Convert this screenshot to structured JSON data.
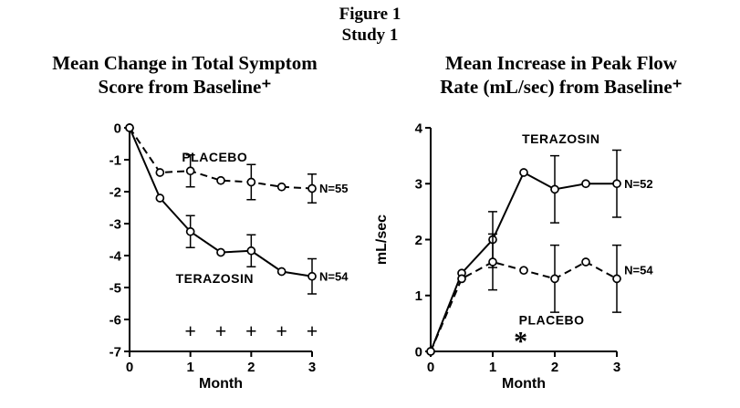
{
  "figure": {
    "title": "Figure 1",
    "subtitle": "Study 1"
  },
  "chart_data": [
    {
      "type": "line",
      "name": "symptom-score",
      "title_lines": [
        "Mean Change in Total Symptom",
        "Score from Baseline⁺"
      ],
      "xlabel": "Month",
      "ylabel": "",
      "xlim": [
        0,
        3
      ],
      "ylim": [
        -7,
        0
      ],
      "xticks": [
        0,
        1,
        2,
        3
      ],
      "yticks": [
        0,
        -1,
        -2,
        -3,
        -4,
        -5,
        -6,
        -7
      ],
      "x": [
        0,
        0.5,
        1,
        1.5,
        2,
        2.5,
        3
      ],
      "series": [
        {
          "name": "PLACEBO",
          "n_label": "N=55",
          "line_style": "dashed",
          "values": [
            0,
            -1.4,
            -1.35,
            -1.65,
            -1.7,
            -1.85,
            -1.9
          ],
          "errors": [
            null,
            null,
            0.5,
            null,
            0.55,
            null,
            0.45
          ],
          "label_pos": {
            "x": 1.4,
            "y": -1.05
          },
          "n_label_pos": {
            "x": 3.12,
            "y": -1.9
          }
        },
        {
          "name": "TERAZOSIN",
          "n_label": "N=54",
          "line_style": "solid",
          "values": [
            0,
            -2.2,
            -3.25,
            -3.9,
            -3.85,
            -4.5,
            -4.65
          ],
          "errors": [
            null,
            null,
            0.5,
            null,
            0.5,
            null,
            0.55
          ],
          "label_pos": {
            "x": 1.4,
            "y": -4.85
          },
          "n_label_pos": {
            "x": 3.12,
            "y": -4.65
          }
        }
      ],
      "annotations": [
        {
          "text": "+",
          "x": 1.0,
          "y": -6.35
        },
        {
          "text": "+",
          "x": 1.5,
          "y": -6.35
        },
        {
          "text": "+",
          "x": 2.0,
          "y": -6.35
        },
        {
          "text": "+",
          "x": 2.5,
          "y": -6.35
        },
        {
          "text": "+",
          "x": 3.0,
          "y": -6.35
        }
      ]
    },
    {
      "type": "line",
      "name": "peak-flow",
      "title_lines": [
        "Mean Increase in Peak Flow",
        "Rate (mL/sec) from Baseline⁺"
      ],
      "xlabel": "Month",
      "ylabel": "mL/sec",
      "xlim": [
        0,
        3
      ],
      "ylim": [
        0,
        4
      ],
      "xticks": [
        0,
        1,
        2,
        3
      ],
      "yticks": [
        0,
        1,
        2,
        3,
        4
      ],
      "x": [
        0,
        0.5,
        1,
        1.5,
        2,
        2.5,
        3
      ],
      "series": [
        {
          "name": "TERAZOSIN",
          "n_label": "N=52",
          "line_style": "solid",
          "values": [
            0,
            1.4,
            2.0,
            3.2,
            2.9,
            3.0,
            3.0
          ],
          "errors": [
            null,
            null,
            0.5,
            null,
            0.6,
            null,
            0.6
          ],
          "label_pos": {
            "x": 2.1,
            "y": 3.72
          },
          "n_label_pos": {
            "x": 3.12,
            "y": 3.0
          }
        },
        {
          "name": "PLACEBO",
          "n_label": "N=54",
          "line_style": "dashed",
          "values": [
            0,
            1.3,
            1.6,
            1.45,
            1.3,
            1.6,
            1.3
          ],
          "errors": [
            null,
            null,
            0.5,
            null,
            0.6,
            null,
            0.6
          ],
          "label_pos": {
            "x": 1.95,
            "y": 0.48
          },
          "n_label_pos": {
            "x": 3.12,
            "y": 1.45
          }
        }
      ],
      "annotations": [
        {
          "text": "*",
          "x": 1.45,
          "y": 0.2
        }
      ]
    }
  ]
}
